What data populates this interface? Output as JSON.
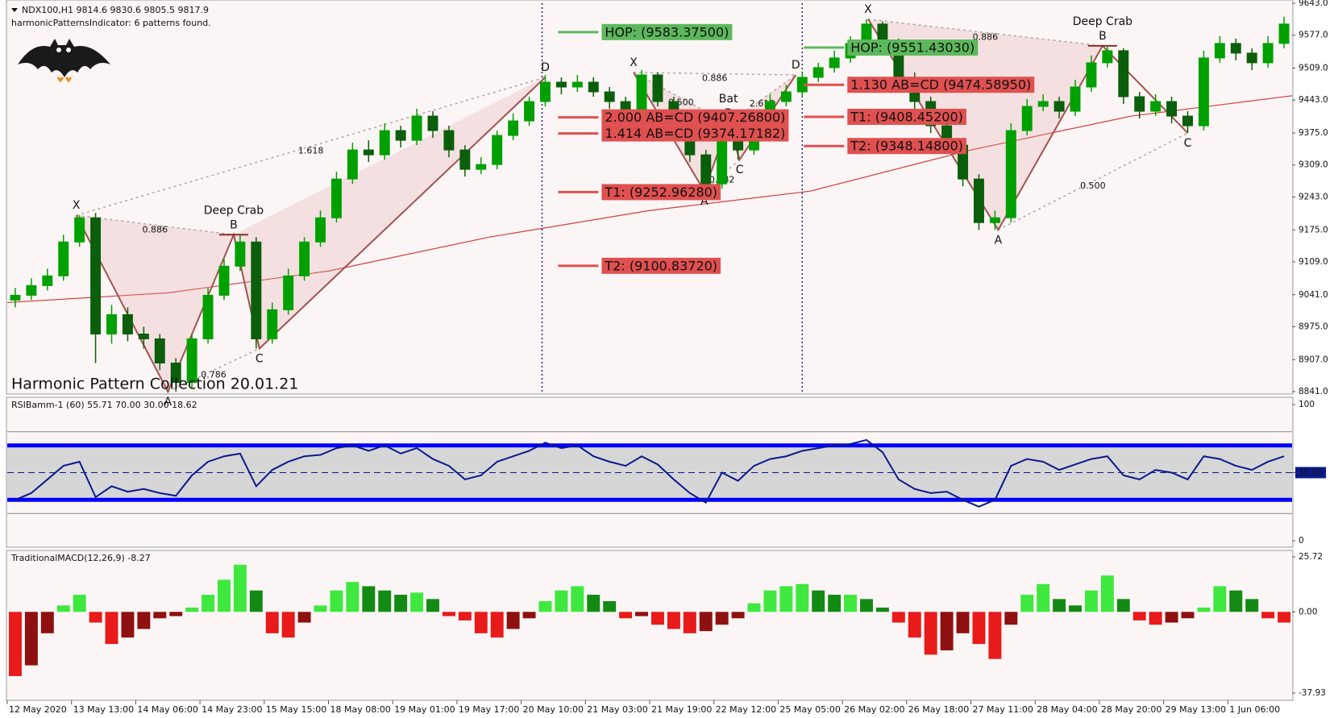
{
  "chart_data": [
    {
      "type": "candlestick",
      "title": "NDX100,H1  9814.6 9830.6 9805.5 9817.9",
      "subtitle": "harmonicPatternsIndicator: 6 patterns found.",
      "watermark": "Harmonic Pattern Collection 20.01.21",
      "open": [
        9030,
        9040,
        9060,
        9080,
        9150,
        9200,
        8960,
        9000,
        8960,
        8950,
        8900,
        8860,
        8950,
        9040,
        9100,
        9150,
        8950,
        9010,
        9080,
        9150,
        9200,
        9280,
        9340,
        9330,
        9380,
        9360,
        9410,
        9380,
        9340,
        9300,
        9310,
        9370,
        9400,
        9440,
        9480,
        9470,
        9480,
        9460,
        9440,
        9420,
        9495,
        9440,
        9400,
        9330,
        9270,
        9380,
        9340,
        9400,
        9440,
        9460,
        9490,
        9510,
        9530,
        9560,
        9600,
        9560,
        9490,
        9440,
        9390,
        9350,
        9280,
        9190,
        9200,
        9380,
        9430,
        9440,
        9420,
        9470,
        9520,
        9545,
        9450,
        9420,
        9440,
        9410,
        9390,
        9530,
        9560,
        9540,
        9520,
        9560
      ],
      "high": [
        9055,
        9075,
        9095,
        9165,
        9205,
        9210,
        9020,
        9015,
        8975,
        8960,
        8910,
        8960,
        9055,
        9115,
        9165,
        9160,
        9025,
        9095,
        9160,
        9215,
        9295,
        9355,
        9360,
        9395,
        9390,
        9425,
        9420,
        9390,
        9350,
        9325,
        9380,
        9415,
        9450,
        9495,
        9490,
        9495,
        9490,
        9470,
        9450,
        9505,
        9500,
        9450,
        9410,
        9340,
        9395,
        9390,
        9415,
        9455,
        9475,
        9500,
        9520,
        9545,
        9575,
        9610,
        9605,
        9570,
        9500,
        9450,
        9400,
        9360,
        9290,
        9215,
        9395,
        9445,
        9455,
        9450,
        9485,
        9535,
        9555,
        9550,
        9460,
        9455,
        9450,
        9420,
        9545,
        9575,
        9570,
        9550,
        9575,
        9615
      ],
      "low": [
        9015,
        9030,
        9050,
        9070,
        9140,
        8900,
        8940,
        8945,
        8930,
        8885,
        8841,
        8850,
        8940,
        9030,
        9090,
        8930,
        8940,
        9000,
        9070,
        9140,
        9190,
        9270,
        9315,
        9320,
        9345,
        9350,
        9365,
        9325,
        9285,
        9290,
        9300,
        9360,
        9390,
        9430,
        9455,
        9460,
        9450,
        9425,
        9405,
        9410,
        9430,
        9385,
        9315,
        9255,
        9260,
        9320,
        9330,
        9390,
        9430,
        9450,
        9480,
        9500,
        9520,
        9550,
        9545,
        9475,
        9425,
        9375,
        9335,
        9265,
        9175,
        9175,
        9190,
        9370,
        9420,
        9405,
        9410,
        9460,
        9510,
        9435,
        9405,
        9410,
        9395,
        9375,
        9380,
        9520,
        9525,
        9505,
        9510,
        9550
      ],
      "close": [
        9040,
        9060,
        9080,
        9150,
        9200,
        8960,
        9000,
        8960,
        8950,
        8900,
        8860,
        8950,
        9040,
        9100,
        9150,
        8950,
        9010,
        9080,
        9150,
        9200,
        9280,
        9340,
        9330,
        9380,
        9360,
        9410,
        9380,
        9340,
        9300,
        9310,
        9370,
        9400,
        9440,
        9480,
        9470,
        9480,
        9460,
        9440,
        9420,
        9495,
        9440,
        9400,
        9330,
        9270,
        9380,
        9340,
        9400,
        9440,
        9460,
        9490,
        9510,
        9530,
        9560,
        9600,
        9560,
        9490,
        9440,
        9390,
        9350,
        9280,
        9190,
        9200,
        9380,
        9430,
        9440,
        9420,
        9470,
        9520,
        9545,
        9450,
        9420,
        9440,
        9410,
        9390,
        9530,
        9560,
        9540,
        9520,
        9560,
        9600
      ],
      "up_color": "#00a000",
      "down_color": "#0b5e0b",
      "xlim": [
        0,
        80
      ],
      "ylim": [
        8841,
        9643
      ],
      "yticks": [
        {
          "value": 9643,
          "label": "9643.0"
        },
        {
          "value": 9577,
          "label": "9577.0"
        },
        {
          "value": 9509,
          "label": "9509.0"
        },
        {
          "value": 9443,
          "label": "9443.0"
        },
        {
          "value": 9375,
          "label": "9375.0"
        },
        {
          "value": 9309,
          "label": "9309.0"
        },
        {
          "value": 9243,
          "label": "9243.0"
        },
        {
          "value": 9175,
          "label": "9175.0"
        },
        {
          "value": 9109,
          "label": "9109.0"
        },
        {
          "value": 9041,
          "label": "9041.0"
        },
        {
          "value": 8975,
          "label": "8975.0"
        },
        {
          "value": 8907,
          "label": "8907.0"
        },
        {
          "value": 8841,
          "label": "8841.0"
        }
      ],
      "ma": {
        "color": "#d43c3c",
        "x": [
          0,
          10,
          20,
          30,
          40,
          50,
          60,
          70,
          80
        ],
        "values": [
          9025,
          9045,
          9090,
          9160,
          9215,
          9255,
          9340,
          9410,
          9452
        ]
      },
      "separators_x": [
        33.3,
        49.5
      ],
      "patterns": [
        {
          "name": "Deep Crab",
          "labels": [
            "X",
            "A",
            "B",
            "C",
            "D"
          ],
          "x": [
            4.3,
            10,
            14.1,
            15.7,
            33.5
          ],
          "y": [
            9205,
            8841,
            9165,
            8930,
            9490
          ],
          "ratios": [
            "0.886",
            "0.786",
            "1.618"
          ]
        },
        {
          "name": "Bat",
          "labels": [
            "X",
            "A",
            "B",
            "C",
            "D"
          ],
          "x": [
            39,
            43.4,
            44.9,
            45.6,
            49.1
          ],
          "y": [
            9500,
            9255,
            9395,
            9320,
            9495
          ],
          "ratios": [
            "0.500",
            "0.382",
            "0.886",
            "2.618"
          ]
        },
        {
          "name": "Deep Crab",
          "labels": [
            "X",
            "A",
            "B",
            "C"
          ],
          "x": [
            53.6,
            61.7,
            68.2,
            73.5
          ],
          "y": [
            9610,
            9175,
            9555,
            9375
          ],
          "ratios": [
            "0.886",
            "0.500"
          ]
        }
      ],
      "levels": [
        [
          {
            "value": 9583.375,
            "label": "HOP: (9583.37500)",
            "color": "#5cb85c"
          },
          {
            "value": 9407.268,
            "label": "2.000 AB=CD (9407.26800)",
            "color": "#e05050"
          },
          {
            "value": 9374.17182,
            "label": "1.414 AB=CD (9374.17182)",
            "color": "#e05050"
          },
          {
            "value": 9252.9628,
            "label": "T1: (9252.96280)",
            "color": "#e05050"
          },
          {
            "value": 9100.8372,
            "label": "T2: (9100.83720)",
            "color": "#e05050"
          }
        ],
        [
          {
            "value": 9551.4303,
            "label": "HOP: (9551.43030)",
            "color": "#5cb85c"
          },
          {
            "value": 9474.5895,
            "label": "1.130 AB=CD (9474.58950)",
            "color": "#e05050"
          },
          {
            "value": 9408.452,
            "label": "T1: (9408.45200)",
            "color": "#e05050"
          },
          {
            "value": 9348.148,
            "label": "T2: (9348.14800)",
            "color": "#e05050"
          }
        ]
      ]
    },
    {
      "type": "line",
      "title": "RSIBamm-1 (60) 55.71 70.00 30.00 18.62",
      "values": [
        30,
        35,
        45,
        55,
        58,
        32,
        40,
        36,
        38,
        35,
        33,
        48,
        58,
        62,
        64,
        40,
        52,
        58,
        62,
        63,
        68,
        70,
        66,
        70,
        64,
        68,
        60,
        55,
        45,
        48,
        58,
        62,
        66,
        72,
        68,
        70,
        62,
        58,
        55,
        62,
        56,
        45,
        35,
        28,
        50,
        44,
        55,
        60,
        62,
        66,
        68,
        70,
        71,
        74,
        65,
        45,
        38,
        35,
        36,
        30,
        25,
        30,
        55,
        60,
        58,
        52,
        56,
        60,
        62,
        48,
        45,
        52,
        50,
        45,
        62,
        60,
        55,
        52,
        58,
        62
      ],
      "color": "#0a1a8c",
      "xlim": [
        0,
        80
      ],
      "ylim": [
        0,
        100
      ],
      "yticks": [
        100,
        {
          "value": 50,
          "label": "50.00"
        },
        0
      ],
      "levels": [
        70,
        30
      ],
      "level_color": "#0000ff",
      "outer_levels": [
        80,
        20
      ],
      "band_color": "#d6d6d6"
    },
    {
      "type": "bar",
      "title": "TraditionalMACD(12,26,9) -8.27",
      "values": [
        -30,
        -25,
        -10,
        3,
        8,
        -5,
        -15,
        -12,
        -8,
        -3,
        -2,
        2,
        8,
        15,
        22,
        10,
        -10,
        -12,
        -5,
        3,
        10,
        14,
        12,
        10,
        8,
        9,
        6,
        -2,
        -4,
        -10,
        -12,
        -8,
        -3,
        5,
        10,
        12,
        8,
        5,
        -3,
        -2,
        -6,
        -8,
        -10,
        -9,
        -6,
        -3,
        4,
        10,
        12,
        13,
        10,
        8,
        8,
        6,
        2,
        -5,
        -12,
        -20,
        -18,
        -10,
        -15,
        -22,
        -6,
        8,
        13,
        6,
        3,
        10,
        17,
        6,
        -4,
        -6,
        -5,
        -3,
        2,
        12,
        10,
        6,
        -3,
        -5
      ],
      "colors": {
        "pos_rising": "#3ee83e",
        "pos_falling": "#138a13",
        "neg_falling": "#e81a1a",
        "neg_rising": "#8f1010"
      },
      "xlim": [
        0,
        80
      ],
      "ylim": [
        -37.93,
        25.72
      ],
      "yticks": [
        25.72,
        {
          "value": 0,
          "label": "0.00"
        },
        -37.93
      ],
      "xticks": [
        {
          "value": 0,
          "label": "12 May 2020"
        },
        {
          "value": 4,
          "label": "13 May 13:00"
        },
        {
          "value": 8,
          "label": "14 May 06:00"
        },
        {
          "value": 12,
          "label": "14 May 23:00"
        },
        {
          "value": 16,
          "label": "15 May 15:00"
        },
        {
          "value": 20,
          "label": "18 May 08:00"
        },
        {
          "value": 24,
          "label": "19 May 01:00"
        },
        {
          "value": 28,
          "label": "19 May 17:00"
        },
        {
          "value": 32,
          "label": "20 May 10:00"
        },
        {
          "value": 36,
          "label": "21 May 03:00"
        },
        {
          "value": 40,
          "label": "21 May 19:00"
        },
        {
          "value": 44,
          "label": "22 May 12:00"
        },
        {
          "value": 48,
          "label": "25 May 05:00"
        },
        {
          "value": 52,
          "label": "26 May 02:00"
        },
        {
          "value": 56,
          "label": "26 May 18:00"
        },
        {
          "value": 60,
          "label": "27 May 11:00"
        },
        {
          "value": 64,
          "label": "28 May 04:00"
        },
        {
          "value": 68,
          "label": "28 May 20:00"
        },
        {
          "value": 72,
          "label": "29 May 13:00"
        },
        {
          "value": 76,
          "label": "1 Jun 06:00"
        }
      ]
    }
  ]
}
